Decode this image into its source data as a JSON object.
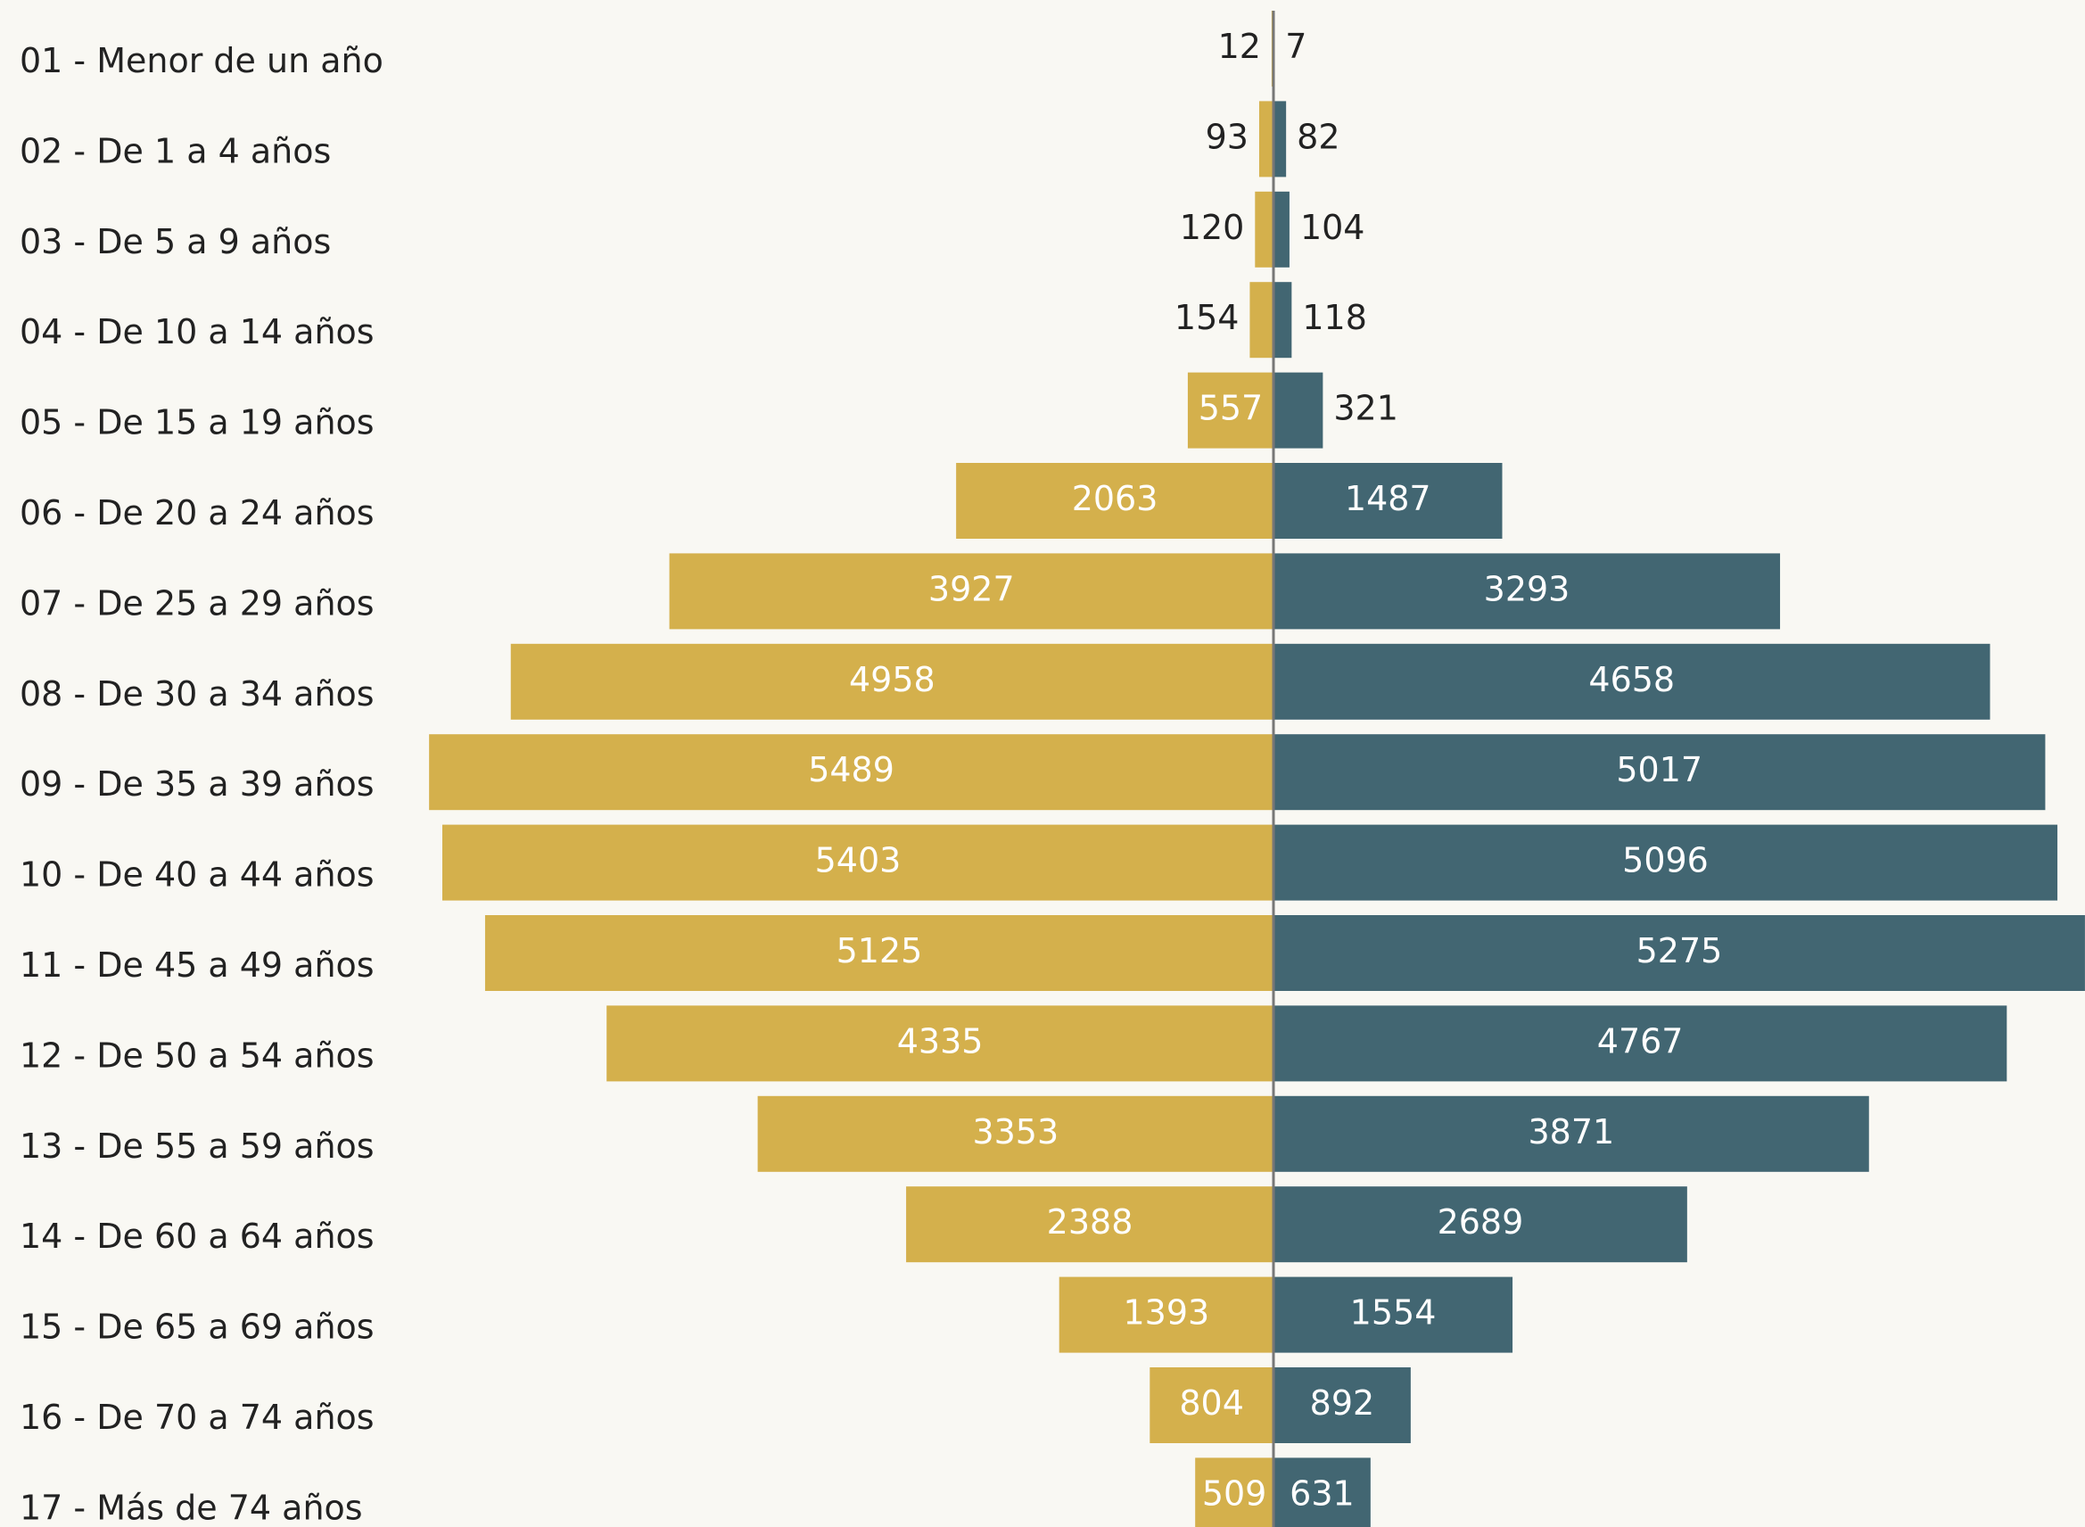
{
  "chart_data": {
    "type": "pyramid",
    "categories": [
      "01 - Menor de un año",
      "02 - De 1 a 4 años",
      "03 - De 5 a 9 años",
      "04 - De 10 a 14 años",
      "05 - De 15 a 19 años",
      "06 - De 20 a 24 años",
      "07 - De 25 a 29 años",
      "08 - De 30 a 34 años",
      "09 - De 35 a 39 años",
      "10 - De 40 a 44 años",
      "11 - De 45 a 49 años",
      "12 - De 50 a 54 años",
      "13 - De 55 a 59 años",
      "14 - De 60 a 64 años",
      "15 - De 65 a 69 años",
      "16 - De 70 a 74 años",
      "17 - Más de 74 años"
    ],
    "series": [
      {
        "color": "#d4b04c",
        "values": [
          12,
          93,
          120,
          154,
          557,
          2063,
          3927,
          4958,
          5489,
          5403,
          5125,
          4335,
          3353,
          2388,
          1393,
          804,
          509
        ]
      },
      {
        "color": "#426672",
        "values": [
          7,
          82,
          104,
          118,
          321,
          1487,
          3293,
          4658,
          5017,
          5096,
          5275,
          4767,
          3871,
          2689,
          1554,
          892,
          631
        ]
      }
    ]
  }
}
